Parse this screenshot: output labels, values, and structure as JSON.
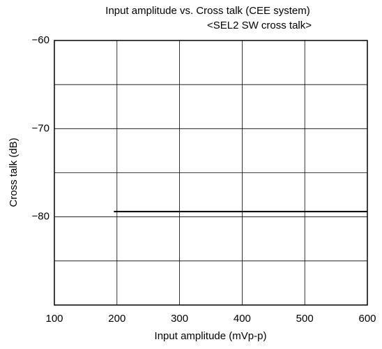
{
  "chart_data": {
    "type": "line",
    "title": "Input amplitude vs. Cross talk (CEE system)",
    "subtitle": "<SEL2 SW cross talk>",
    "x_label": "Input amplitude (mVp-p)",
    "y_label": "Cross talk (dB)",
    "x": [
      195,
      600
    ],
    "series": [
      {
        "color": "#000000",
        "values": [
          -79.4,
          -79.4
        ]
      }
    ],
    "xlim": [
      100,
      600
    ],
    "xticks": [
      100,
      200,
      300,
      400,
      500,
      600
    ],
    "ylim": [
      -90,
      -60
    ],
    "yticks": [
      {
        "value": -60,
        "label": "−60"
      },
      {
        "value": -70,
        "label": "−70"
      },
      {
        "value": -80,
        "label": "−80"
      }
    ],
    "ygrid": [
      -65,
      -75,
      -85
    ],
    "grid": true
  }
}
